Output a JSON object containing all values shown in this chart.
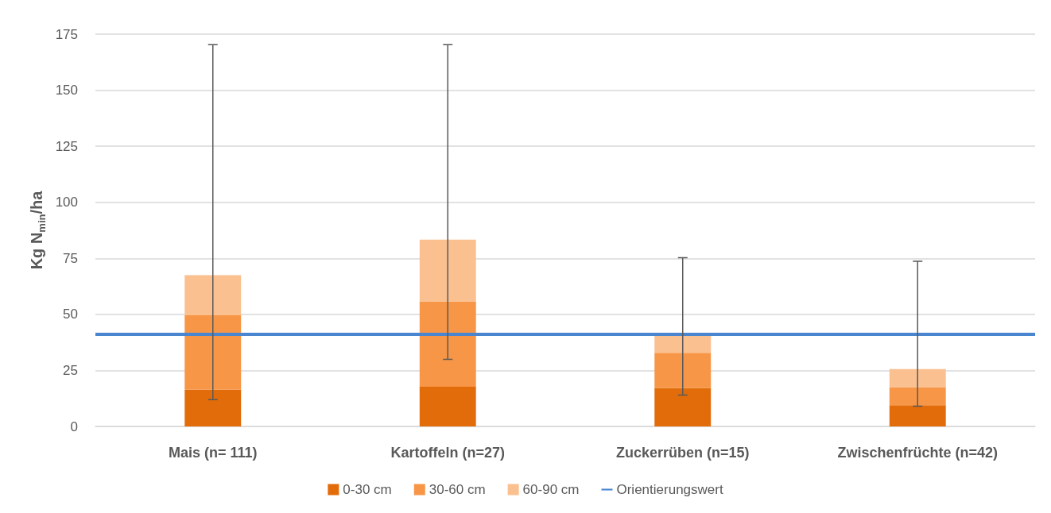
{
  "chart_data": {
    "type": "bar",
    "stacked": true,
    "ylabel": "Kg N$_{min}$/ha",
    "categories": [
      "Mais (n= 111)",
      "Kartoffeln (n=27)",
      "Zuckerrüben (n=15)",
      "Zwischenfrüchte (n=42)"
    ],
    "series": [
      {
        "name": "0-30 cm",
        "color": "#e36c0a",
        "values": [
          16.5,
          17.7,
          17.2,
          9.5
        ]
      },
      {
        "name": "30-60 cm",
        "color": "#f79646",
        "values": [
          33.1,
          38.1,
          15.7,
          8.0
        ]
      },
      {
        "name": "60-90 cm",
        "color": "#fac090",
        "values": [
          17.9,
          27.5,
          7.8,
          8.1
        ],
        "errors": [
          [
            12.0,
            170.3
          ],
          [
            29.9,
            170.3
          ],
          [
            14.0,
            75.3
          ],
          [
            9.0,
            73.7
          ]
        ]
      }
    ],
    "ref_lines": [
      {
        "axis": "y",
        "value": 41.3,
        "label": "Orientierungswert",
        "color": "#4a86d0"
      }
    ],
    "ylim": [
      0,
      175
    ],
    "yticks": [
      0,
      25,
      50,
      75,
      100,
      125,
      150,
      175
    ],
    "grid": "y",
    "legend": "bottom"
  }
}
